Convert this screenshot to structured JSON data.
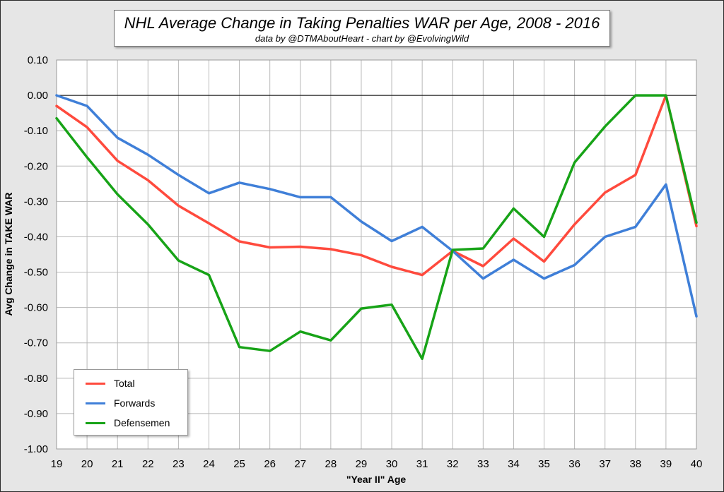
{
  "chart_data": {
    "type": "line",
    "title": "NHL Average Change in Taking Penalties WAR per Age, 2008 - 2016",
    "subtitle": "data by @DTMAboutHeart  -  chart by @EvolvingWild",
    "xlabel": "\"Year II\" Age",
    "ylabel": "Avg Change in TAKE WAR",
    "x": [
      19,
      20,
      21,
      22,
      23,
      24,
      25,
      26,
      27,
      28,
      29,
      30,
      31,
      32,
      33,
      34,
      35,
      36,
      37,
      38,
      39,
      40
    ],
    "x_tick_labels": [
      "19",
      "20",
      "21",
      "22",
      "23",
      "24",
      "25",
      "26",
      "27",
      "28",
      "29",
      "30",
      "31",
      "32",
      "33",
      "34",
      "35",
      "36",
      "37",
      "38",
      "39",
      "40"
    ],
    "ylim": [
      -1.0,
      0.1
    ],
    "y_ticks": [
      0.1,
      0.0,
      -0.1,
      -0.2,
      -0.3,
      -0.4,
      -0.5,
      -0.6,
      -0.7,
      -0.8,
      -0.9,
      -1.0
    ],
    "y_tick_labels": [
      "0.10",
      "0.00",
      "-0.10",
      "-0.20",
      "-0.30",
      "-0.40",
      "-0.50",
      "-0.60",
      "-0.70",
      "-0.80",
      "-0.90",
      "-1.00"
    ],
    "grid": true,
    "legend_position": "bottom-left",
    "series": [
      {
        "name": "Total",
        "color": "#ff4a3d",
        "values": [
          -0.03,
          -0.09,
          -0.185,
          -0.24,
          -0.312,
          -0.362,
          -0.413,
          -0.43,
          -0.428,
          -0.435,
          -0.452,
          -0.485,
          -0.508,
          -0.44,
          -0.483,
          -0.405,
          -0.47,
          -0.365,
          -0.275,
          -0.225,
          0.0,
          -0.37
        ]
      },
      {
        "name": "Forwards",
        "color": "#3f7fd8",
        "values": [
          0.0,
          -0.03,
          -0.12,
          -0.168,
          -0.225,
          -0.277,
          -0.247,
          -0.265,
          -0.288,
          -0.288,
          -0.357,
          -0.412,
          -0.372,
          -0.44,
          -0.518,
          -0.465,
          -0.518,
          -0.48,
          -0.4,
          -0.372,
          -0.252,
          -0.625
        ]
      },
      {
        "name": "Defensemen",
        "color": "#17a317",
        "values": [
          -0.065,
          -0.175,
          -0.28,
          -0.365,
          -0.467,
          -0.508,
          -0.712,
          -0.723,
          -0.668,
          -0.693,
          -0.603,
          -0.592,
          -0.745,
          -0.437,
          -0.433,
          -0.32,
          -0.4,
          -0.19,
          -0.088,
          0.0,
          0.0,
          -0.36
        ]
      }
    ]
  }
}
